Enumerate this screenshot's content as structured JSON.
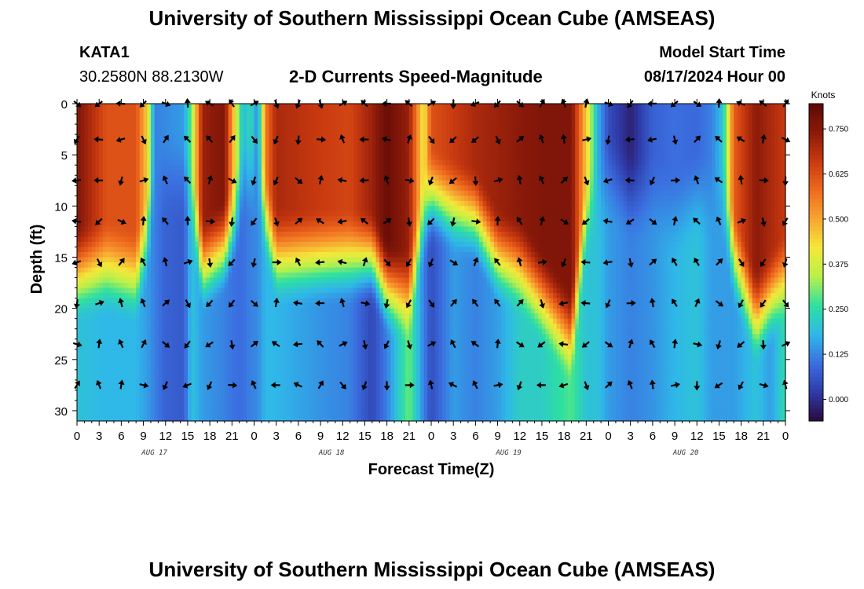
{
  "page": {
    "title": "University of Southern Mississippi Ocean Cube (AMSEAS)",
    "station_id": "KATA1",
    "station_coords": "30.2580N  88.2130W",
    "subtitle": "2-D Currents Speed-Magnitude",
    "model_start_label": "Model Start Time",
    "model_start_value": "08/17/2024 Hour 00",
    "footer_title": "University of Southern Mississippi Ocean Cube (AMSEAS)"
  },
  "colors": {
    "scale": [
      "#2b0a3d",
      "#2f3aa8",
      "#3b6fe0",
      "#2fb8e8",
      "#2ee0a0",
      "#b8f04a",
      "#f4e83a",
      "#f7a531",
      "#ef6a1e",
      "#c93a10",
      "#8b1a0a",
      "#5e0a06"
    ],
    "arrow": "#000000",
    "frame": "#000000"
  },
  "chart_data": {
    "type": "heatmap",
    "title": "2-D Currents Speed-Magnitude",
    "xlabel": "Forecast Time(Z)",
    "ylabel": "Depth (ft)",
    "colorbar_title": "Knots",
    "colorbar_range": [
      -0.06,
      0.82
    ],
    "colorbar_ticks": [
      "0.000",
      "0.125",
      "0.250",
      "0.375",
      "0.500",
      "0.625",
      "0.750"
    ],
    "x_range_hours": [
      0,
      96
    ],
    "x_tick_labels": [
      "0",
      "3",
      "6",
      "9",
      "12",
      "15",
      "18",
      "21",
      "0",
      "3",
      "6",
      "9",
      "12",
      "15",
      "18",
      "21",
      "0",
      "3",
      "6",
      "9",
      "12",
      "15",
      "18",
      "21",
      "0",
      "3",
      "6",
      "9",
      "12",
      "15",
      "18",
      "21",
      "0"
    ],
    "x_date_labels": [
      {
        "hour": 10.5,
        "label": "AUG 17"
      },
      {
        "hour": 34.5,
        "label": "AUG 18"
      },
      {
        "hour": 58.5,
        "label": "AUG 19"
      },
      {
        "hour": 82.5,
        "label": "AUG 20"
      }
    ],
    "y_range_ft": [
      0,
      31
    ],
    "y_tick_labels": [
      "0",
      "5",
      "10",
      "15",
      "20",
      "25",
      "30"
    ],
    "y_tick_values": [
      0,
      5,
      10,
      15,
      20,
      25,
      30
    ],
    "profiles": [
      {
        "hour": 0,
        "surface": 0.76,
        "ramp_depth": 15.5,
        "bottom": 0.2
      },
      {
        "hour": 4,
        "surface": 0.62,
        "ramp_depth": 15.0,
        "bottom": 0.18
      },
      {
        "hour": 8,
        "surface": 0.62,
        "ramp_depth": 16.0,
        "bottom": 0.18
      },
      {
        "hour": 9.5,
        "surface": 0.45,
        "ramp_depth": 12.0,
        "bottom": 0.15
      },
      {
        "hour": 10.5,
        "surface": 0.12,
        "ramp_depth": 6.0,
        "bottom": 0.12
      },
      {
        "hour": 12,
        "surface": 0.13,
        "ramp_depth": 6.0,
        "bottom": 0.08
      },
      {
        "hour": 14.5,
        "surface": 0.15,
        "ramp_depth": 6.0,
        "bottom": 0.07
      },
      {
        "hour": 15.5,
        "surface": 0.3,
        "ramp_depth": 8.0,
        "bottom": 0.2
      },
      {
        "hour": 17,
        "surface": 0.72,
        "ramp_depth": 15.0,
        "bottom": 0.15
      },
      {
        "hour": 20,
        "surface": 0.76,
        "ramp_depth": 13.0,
        "bottom": 0.12
      },
      {
        "hour": 21.5,
        "surface": 0.4,
        "ramp_depth": 10.0,
        "bottom": 0.1
      },
      {
        "hour": 22.5,
        "surface": 0.18,
        "ramp_depth": 6.0,
        "bottom": 0.1
      },
      {
        "hour": 23.5,
        "surface": 0.25,
        "ramp_depth": 6.0,
        "bottom": 0.12
      },
      {
        "hour": 24.5,
        "surface": 0.12,
        "ramp_depth": 6.0,
        "bottom": 0.13
      },
      {
        "hour": 25.5,
        "surface": 0.55,
        "ramp_depth": 10.0,
        "bottom": 0.18
      },
      {
        "hour": 27,
        "surface": 0.7,
        "ramp_depth": 14.0,
        "bottom": 0.18
      },
      {
        "hour": 33,
        "surface": 0.66,
        "ramp_depth": 14.0,
        "bottom": 0.14
      },
      {
        "hour": 37,
        "surface": 0.64,
        "ramp_depth": 14.0,
        "bottom": 0.12
      },
      {
        "hour": 40,
        "surface": 0.72,
        "ramp_depth": 14.0,
        "bottom": 0.04
      },
      {
        "hour": 42,
        "surface": 0.8,
        "ramp_depth": 17.0,
        "bottom": 0.12
      },
      {
        "hour": 45,
        "surface": 0.72,
        "ramp_depth": 18.0,
        "bottom": 0.3
      },
      {
        "hour": 47,
        "surface": 0.4,
        "ramp_depth": 10.0,
        "bottom": 0.12
      },
      {
        "hour": 48,
        "surface": 0.62,
        "ramp_depth": 8.0,
        "bottom": 0.05
      },
      {
        "hour": 51,
        "surface": 0.66,
        "ramp_depth": 9.0,
        "bottom": 0.15
      },
      {
        "hour": 54,
        "surface": 0.7,
        "ramp_depth": 10.0,
        "bottom": 0.12
      },
      {
        "hour": 57,
        "surface": 0.72,
        "ramp_depth": 14.0,
        "bottom": 0.15
      },
      {
        "hour": 60,
        "surface": 0.74,
        "ramp_depth": 15.0,
        "bottom": 0.22
      },
      {
        "hour": 63,
        "surface": 0.76,
        "ramp_depth": 18.0,
        "bottom": 0.22
      },
      {
        "hour": 67,
        "surface": 0.76,
        "ramp_depth": 22.0,
        "bottom": 0.28
      },
      {
        "hour": 69,
        "surface": 0.45,
        "ramp_depth": 10.0,
        "bottom": 0.2
      },
      {
        "hour": 70.5,
        "surface": 0.18,
        "ramp_depth": 8.0,
        "bottom": 0.2
      },
      {
        "hour": 72,
        "surface": 0.05,
        "ramp_depth": 6.0,
        "bottom": 0.15
      },
      {
        "hour": 75,
        "surface": -0.02,
        "ramp_depth": 8.0,
        "bottom": 0.12
      },
      {
        "hour": 78,
        "surface": 0.08,
        "ramp_depth": 8.0,
        "bottom": 0.14
      },
      {
        "hour": 81,
        "surface": 0.1,
        "ramp_depth": 10.0,
        "bottom": 0.18
      },
      {
        "hour": 84,
        "surface": 0.09,
        "ramp_depth": 8.0,
        "bottom": 0.2
      },
      {
        "hour": 86,
        "surface": 0.12,
        "ramp_depth": 8.0,
        "bottom": 0.15
      },
      {
        "hour": 87.5,
        "surface": 0.2,
        "ramp_depth": 8.0,
        "bottom": 0.15
      },
      {
        "hour": 89,
        "surface": 0.6,
        "ramp_depth": 14.0,
        "bottom": 0.15
      },
      {
        "hour": 92,
        "surface": 0.74,
        "ramp_depth": 20.0,
        "bottom": 0.2
      },
      {
        "hour": 94,
        "surface": 0.7,
        "ramp_depth": 18.0,
        "bottom": 0.15
      },
      {
        "hour": 96,
        "surface": 0.66,
        "ramp_depth": 16.0,
        "bottom": 0.25
      }
    ],
    "vector_depths_ft": [
      0,
      3.5,
      7.5,
      11.5,
      15.5,
      19.5,
      23.5,
      27.5,
      29.5
    ],
    "vector_hours": [
      0,
      3,
      6,
      9,
      12,
      15,
      18,
      21,
      24,
      27,
      30,
      33,
      36,
      39,
      42,
      45,
      48,
      51,
      54,
      57,
      60,
      63,
      66,
      69,
      72,
      75,
      78,
      81,
      84,
      87,
      90,
      93,
      96
    ]
  }
}
